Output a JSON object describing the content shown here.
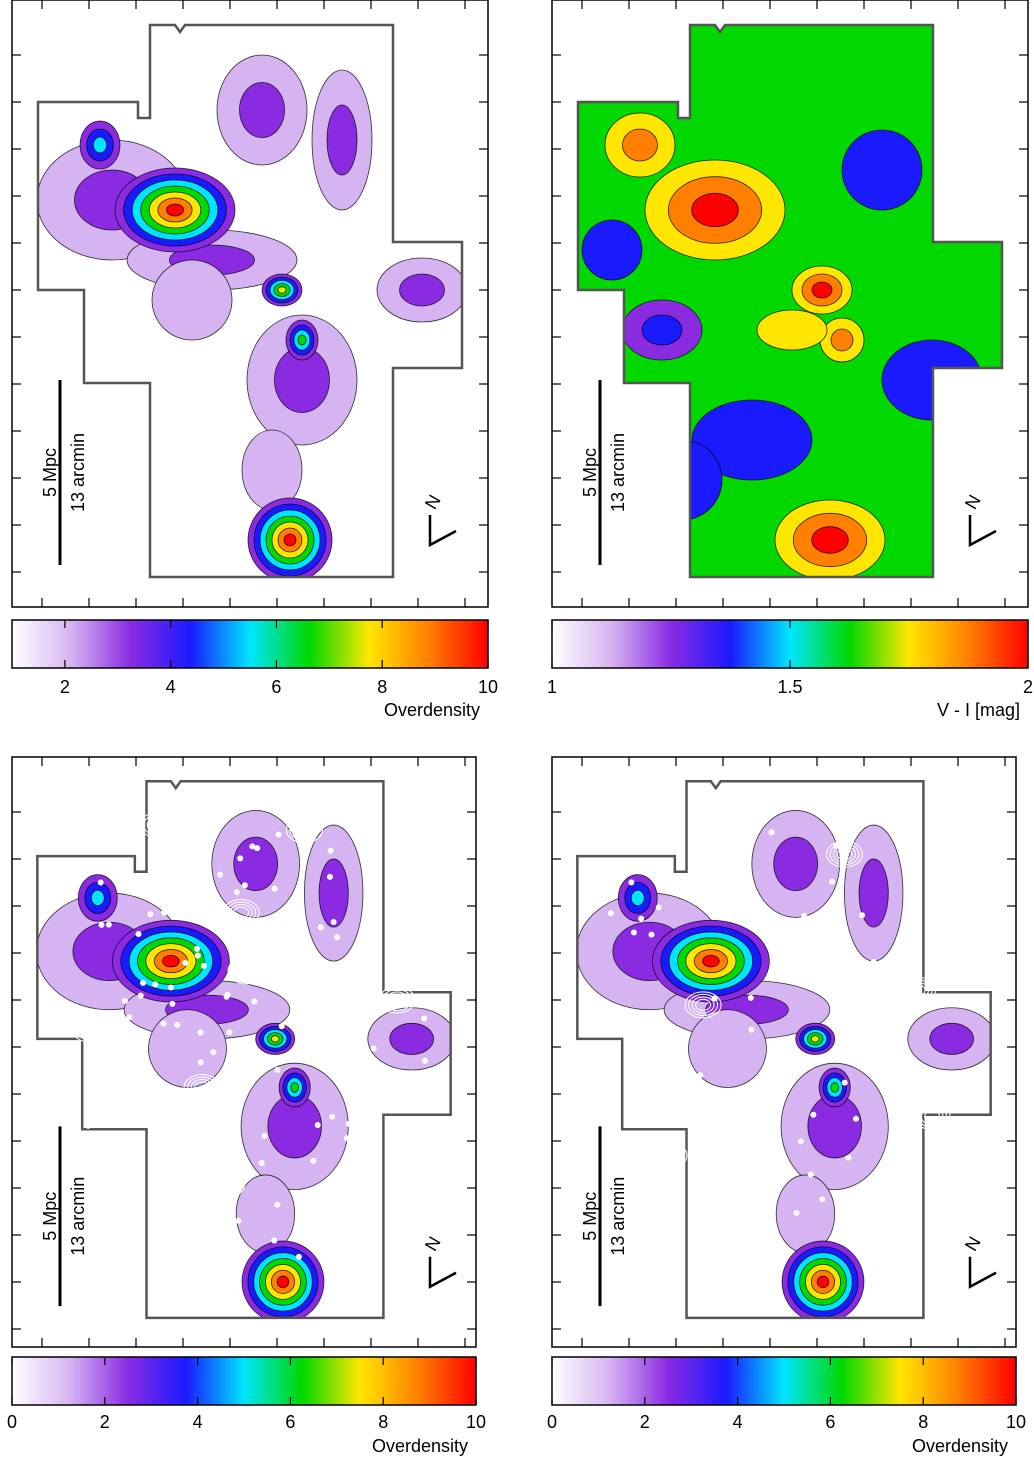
{
  "panels": [
    {
      "colorbar": {
        "lim": [
          1,
          10
        ],
        "ticks": [
          2,
          4,
          6,
          8,
          10
        ],
        "label": "Overdensity"
      },
      "scale_bar": {
        "physical": "5 Mpc",
        "angular": "13 arcmin"
      },
      "compass": "N"
    },
    {
      "colorbar": {
        "lim": [
          1,
          2
        ],
        "ticks": [
          1,
          1.5,
          2
        ],
        "label": "V - I [mag]"
      },
      "scale_bar": {
        "physical": "5 Mpc",
        "angular": "13 arcmin"
      },
      "compass": "N"
    },
    {
      "colorbar": {
        "lim": [
          0,
          10
        ],
        "ticks": [
          0,
          2,
          4,
          6,
          8,
          10
        ],
        "label": "Overdensity"
      },
      "scale_bar": {
        "physical": "5 Mpc",
        "angular": "13 arcmin"
      },
      "compass": "N"
    },
    {
      "colorbar": {
        "lim": [
          0,
          10
        ],
        "ticks": [
          0,
          2,
          4,
          6,
          8,
          10
        ],
        "label": "Overdensity"
      },
      "scale_bar": {
        "physical": "5 Mpc",
        "angular": "13 arcmin"
      },
      "compass": "N"
    }
  ],
  "colormap": [
    "#ffffff",
    "#d6b4f2",
    "#8a2be2",
    "#1a1aff",
    "#00e5ff",
    "#00d800",
    "#ffe600",
    "#ff8000",
    "#ff0000"
  ]
}
